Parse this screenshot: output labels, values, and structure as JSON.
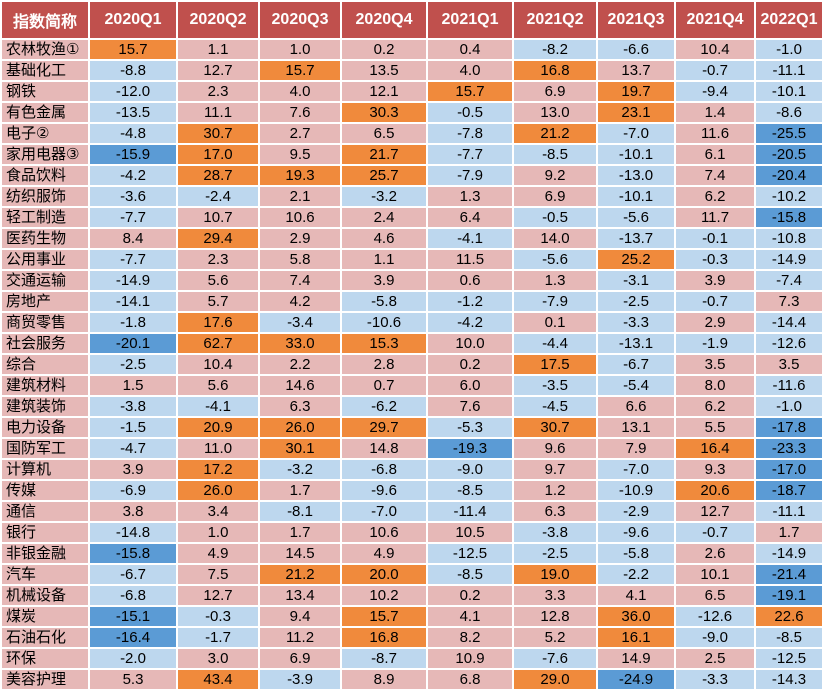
{
  "colors": {
    "header_bg": "#c0504d",
    "header_text": "#ffffff",
    "label_bg": "#e6b8b7",
    "high_orange": "#f08a3c",
    "positive_pink": "#e6b8b7",
    "negative_lightblue": "#bdd7ee",
    "low_blue": "#5b9bd5"
  },
  "chart_data": {
    "type": "table",
    "header_label": "指数简称",
    "columns": [
      "2020Q1",
      "2020Q2",
      "2020Q3",
      "2020Q4",
      "2021Q1",
      "2021Q2",
      "2021Q3",
      "2021Q4",
      "2022Q1"
    ],
    "rows": [
      {
        "name": "农林牧渔①",
        "values": [
          15.7,
          1.1,
          1.0,
          0.2,
          0.4,
          -8.2,
          -6.6,
          10.4,
          -1.0
        ],
        "hl": [
          "H",
          "",
          "",
          "",
          "",
          "",
          "",
          "",
          ""
        ]
      },
      {
        "name": "基础化工",
        "values": [
          -8.8,
          12.7,
          15.7,
          13.5,
          4.0,
          16.8,
          13.7,
          -0.7,
          -11.1
        ],
        "hl": [
          "",
          "",
          "H",
          "",
          "",
          "H",
          "",
          "",
          ""
        ]
      },
      {
        "name": "钢铁",
        "values": [
          -12.0,
          2.3,
          4.0,
          12.1,
          15.7,
          6.9,
          19.7,
          -9.4,
          -10.1
        ],
        "hl": [
          "",
          "",
          "",
          "",
          "H",
          "",
          "H",
          "",
          ""
        ]
      },
      {
        "name": "有色金属",
        "values": [
          -13.5,
          11.1,
          7.6,
          30.3,
          -0.5,
          13.0,
          23.1,
          1.4,
          -8.6
        ],
        "hl": [
          "",
          "",
          "",
          "H",
          "",
          "",
          "H",
          "",
          ""
        ]
      },
      {
        "name": "电子②",
        "values": [
          -4.8,
          30.7,
          2.7,
          6.5,
          -7.8,
          21.2,
          -7.0,
          11.6,
          -25.5
        ],
        "hl": [
          "",
          "H",
          "",
          "",
          "",
          "H",
          "",
          "",
          "L"
        ]
      },
      {
        "name": "家用电器③",
        "values": [
          -15.9,
          17.0,
          9.5,
          21.7,
          -7.7,
          -8.5,
          -10.1,
          6.1,
          -20.5
        ],
        "hl": [
          "L",
          "H",
          "",
          "H",
          "",
          "",
          "",
          "",
          "L"
        ]
      },
      {
        "name": "食品饮料",
        "values": [
          -4.2,
          28.7,
          19.3,
          25.7,
          -7.9,
          9.2,
          -13.0,
          7.4,
          -20.4
        ],
        "hl": [
          "",
          "H",
          "H",
          "H",
          "",
          "",
          "",
          "",
          "L"
        ]
      },
      {
        "name": "纺织服饰",
        "values": [
          -3.6,
          -2.4,
          2.1,
          -3.2,
          1.3,
          6.9,
          -10.1,
          6.2,
          -10.2
        ],
        "hl": [
          "",
          "",
          "",
          "",
          "",
          "",
          "",
          "",
          ""
        ]
      },
      {
        "name": "轻工制造",
        "values": [
          -7.7,
          10.7,
          10.6,
          2.4,
          6.4,
          -0.5,
          -5.6,
          11.7,
          -15.8
        ],
        "hl": [
          "",
          "",
          "",
          "",
          "",
          "",
          "",
          "",
          "L"
        ]
      },
      {
        "name": "医药生物",
        "values": [
          8.4,
          29.4,
          2.9,
          4.6,
          -4.1,
          14.0,
          -13.7,
          -0.1,
          -10.8
        ],
        "hl": [
          "",
          "H",
          "",
          "",
          "",
          "",
          "",
          "",
          ""
        ]
      },
      {
        "name": "公用事业",
        "values": [
          -7.7,
          2.3,
          5.8,
          1.1,
          11.5,
          -5.6,
          25.2,
          -0.3,
          -14.9
        ],
        "hl": [
          "",
          "",
          "",
          "",
          "",
          "",
          "H",
          "",
          ""
        ]
      },
      {
        "name": "交通运输",
        "values": [
          -14.9,
          5.6,
          7.4,
          3.9,
          0.6,
          1.3,
          -3.1,
          3.9,
          -7.4
        ],
        "hl": [
          "",
          "",
          "",
          "",
          "",
          "",
          "",
          "",
          ""
        ]
      },
      {
        "name": "房地产",
        "values": [
          -14.1,
          5.7,
          4.2,
          -5.8,
          -1.2,
          -7.9,
          -2.5,
          -0.7,
          7.3
        ],
        "hl": [
          "",
          "",
          "",
          "",
          "",
          "",
          "",
          "",
          ""
        ]
      },
      {
        "name": "商贸零售",
        "values": [
          -1.8,
          17.6,
          -3.4,
          -10.6,
          -4.2,
          0.1,
          -3.3,
          2.9,
          -14.4
        ],
        "hl": [
          "",
          "H",
          "",
          "",
          "",
          "",
          "",
          "",
          ""
        ]
      },
      {
        "name": "社会服务",
        "values": [
          -20.1,
          62.7,
          33.0,
          15.3,
          10.0,
          -4.4,
          -13.1,
          -1.9,
          -12.6
        ],
        "hl": [
          "L",
          "H",
          "H",
          "H",
          "",
          "",
          "",
          "",
          ""
        ]
      },
      {
        "name": "综合",
        "values": [
          -2.5,
          10.4,
          2.2,
          2.8,
          0.2,
          17.5,
          -6.7,
          3.5,
          3.5
        ],
        "hl": [
          "",
          "",
          "",
          "",
          "",
          "H",
          "",
          "",
          ""
        ]
      },
      {
        "name": "建筑材料",
        "values": [
          1.5,
          5.6,
          14.6,
          0.7,
          6.0,
          -3.5,
          -5.4,
          8.0,
          -11.6
        ],
        "hl": [
          "",
          "",
          "",
          "",
          "",
          "",
          "",
          "",
          ""
        ]
      },
      {
        "name": "建筑装饰",
        "values": [
          -3.8,
          -4.1,
          6.3,
          -6.2,
          7.6,
          -4.5,
          6.6,
          6.2,
          -1.0
        ],
        "hl": [
          "",
          "",
          "",
          "",
          "",
          "",
          "",
          "",
          ""
        ]
      },
      {
        "name": "电力设备",
        "values": [
          -1.5,
          20.9,
          26.0,
          29.7,
          -5.3,
          30.7,
          13.1,
          5.5,
          -17.8
        ],
        "hl": [
          "",
          "H",
          "H",
          "H",
          "",
          "H",
          "",
          "",
          "L"
        ]
      },
      {
        "name": "国防军工",
        "values": [
          -4.7,
          11.0,
          30.1,
          14.8,
          -19.3,
          9.6,
          7.9,
          16.4,
          -23.3
        ],
        "hl": [
          "",
          "",
          "H",
          "",
          "L",
          "",
          "",
          "H",
          "L"
        ]
      },
      {
        "name": "计算机",
        "values": [
          3.9,
          17.2,
          -3.2,
          -6.8,
          -9.0,
          9.7,
          -7.0,
          9.3,
          -17.0
        ],
        "hl": [
          "",
          "H",
          "",
          "",
          "",
          "",
          "",
          "",
          "L"
        ]
      },
      {
        "name": "传媒",
        "values": [
          -6.9,
          26.0,
          1.7,
          -9.6,
          -8.5,
          1.2,
          -10.9,
          20.6,
          -18.7
        ],
        "hl": [
          "",
          "H",
          "",
          "",
          "",
          "",
          "",
          "H",
          "L"
        ]
      },
      {
        "name": "通信",
        "values": [
          3.8,
          3.4,
          -8.1,
          -7.0,
          -11.4,
          6.3,
          -2.9,
          12.7,
          -11.1
        ],
        "hl": [
          "",
          "",
          "",
          "",
          "",
          "",
          "",
          "",
          ""
        ]
      },
      {
        "name": "银行",
        "values": [
          -14.8,
          1.0,
          1.7,
          10.6,
          10.5,
          -3.8,
          -9.6,
          -0.7,
          1.7
        ],
        "hl": [
          "",
          "",
          "",
          "",
          "",
          "",
          "",
          "",
          ""
        ]
      },
      {
        "name": "非银金融",
        "values": [
          -15.8,
          4.9,
          14.5,
          4.9,
          -12.5,
          -2.5,
          -5.8,
          2.6,
          -14.9
        ],
        "hl": [
          "L",
          "",
          "",
          "",
          "",
          "",
          "",
          "",
          ""
        ]
      },
      {
        "name": "汽车",
        "values": [
          -6.7,
          7.5,
          21.2,
          20.0,
          -8.5,
          19.0,
          -2.2,
          10.1,
          -21.4
        ],
        "hl": [
          "",
          "",
          "H",
          "H",
          "",
          "H",
          "",
          "",
          "L"
        ]
      },
      {
        "name": "机械设备",
        "values": [
          -6.8,
          12.7,
          13.4,
          10.2,
          0.2,
          3.3,
          4.1,
          6.5,
          -19.1
        ],
        "hl": [
          "",
          "",
          "",
          "",
          "",
          "",
          "",
          "",
          "L"
        ]
      },
      {
        "name": "煤炭",
        "values": [
          -15.1,
          -0.3,
          9.4,
          15.7,
          4.1,
          12.8,
          36.0,
          -12.6,
          22.6
        ],
        "hl": [
          "L",
          "",
          "",
          "H",
          "",
          "",
          "H",
          "",
          "H"
        ]
      },
      {
        "name": "石油石化",
        "values": [
          -16.4,
          -1.7,
          11.2,
          16.8,
          8.2,
          5.2,
          16.1,
          -9.0,
          -8.5
        ],
        "hl": [
          "L",
          "",
          "",
          "H",
          "",
          "",
          "H",
          "",
          ""
        ]
      },
      {
        "name": "环保",
        "values": [
          -2.0,
          3.0,
          6.9,
          -8.7,
          10.9,
          -7.6,
          14.9,
          2.5,
          -12.5
        ],
        "hl": [
          "",
          "",
          "",
          "",
          "",
          "",
          "",
          "",
          ""
        ]
      },
      {
        "name": "美容护理",
        "values": [
          5.3,
          43.4,
          -3.9,
          8.9,
          6.8,
          29.0,
          -24.9,
          -3.3,
          -14.3
        ],
        "hl": [
          "",
          "H",
          "",
          "",
          "",
          "H",
          "L",
          "",
          ""
        ]
      }
    ]
  }
}
